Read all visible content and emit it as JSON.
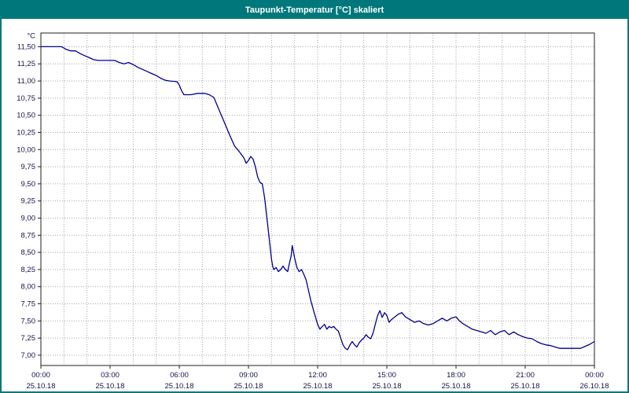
{
  "header": {
    "title": "Taupunkt-Temperatur [°C] skaliert"
  },
  "colors": {
    "title_bar_bg": "#00787b",
    "title_text": "#ffffff",
    "page_border": "#00787b",
    "line_color": "#000090",
    "grid_color": "#a6a6a6",
    "frame_color": "#222222",
    "tick_text_color": "#14144b",
    "plot_bg": "#ffffff"
  },
  "chart_data": {
    "type": "line",
    "title": "Taupunkt-Temperatur [°C] skaliert",
    "ylabel": "°C",
    "xlabel": "",
    "grid": true,
    "legend": "none",
    "xlim": [
      0,
      24
    ],
    "ylim": [
      6.85,
      11.7
    ],
    "x_minor_grid_step_hours": 1,
    "y_ticks": [
      {
        "value": 11.5,
        "label": "11,50"
      },
      {
        "value": 11.25,
        "label": "11,25"
      },
      {
        "value": 11.0,
        "label": "11,00"
      },
      {
        "value": 10.75,
        "label": "10,75"
      },
      {
        "value": 10.5,
        "label": "10,50"
      },
      {
        "value": 10.25,
        "label": "10,25"
      },
      {
        "value": 10.0,
        "label": "10,00"
      },
      {
        "value": 9.75,
        "label": "9,75"
      },
      {
        "value": 9.5,
        "label": "9,50"
      },
      {
        "value": 9.25,
        "label": "9,25"
      },
      {
        "value": 9.0,
        "label": "9,00"
      },
      {
        "value": 8.75,
        "label": "8,75"
      },
      {
        "value": 8.5,
        "label": "8,50"
      },
      {
        "value": 8.25,
        "label": "8,25"
      },
      {
        "value": 8.0,
        "label": "8,00"
      },
      {
        "value": 7.75,
        "label": "7,75"
      },
      {
        "value": 7.5,
        "label": "7,50"
      },
      {
        "value": 7.25,
        "label": "7,25"
      },
      {
        "value": 7.0,
        "label": "7,00"
      }
    ],
    "x_ticks": [
      {
        "hour": 0,
        "time": "00:00",
        "date": "25.10.18"
      },
      {
        "hour": 3,
        "time": "03:00",
        "date": "25.10.18"
      },
      {
        "hour": 6,
        "time": "06:00",
        "date": "25.10.18"
      },
      {
        "hour": 9,
        "time": "09:00",
        "date": "25.10.18"
      },
      {
        "hour": 12,
        "time": "12:00",
        "date": "25.10.18"
      },
      {
        "hour": 15,
        "time": "15:00",
        "date": "25.10.18"
      },
      {
        "hour": 18,
        "time": "18:00",
        "date": "25.10.18"
      },
      {
        "hour": 21,
        "time": "21:00",
        "date": "25.10.18"
      },
      {
        "hour": 24,
        "time": "00:00",
        "date": "26.10.18"
      }
    ],
    "series": [
      {
        "name": "Taupunkt-Temperatur",
        "unit": "°C",
        "points": [
          [
            0.0,
            11.5
          ],
          [
            0.5,
            11.5
          ],
          [
            0.9,
            11.5
          ],
          [
            1.1,
            11.46
          ],
          [
            1.3,
            11.44
          ],
          [
            1.5,
            11.44
          ],
          [
            1.7,
            11.4
          ],
          [
            1.9,
            11.37
          ],
          [
            2.1,
            11.34
          ],
          [
            2.3,
            11.31
          ],
          [
            2.5,
            11.3
          ],
          [
            2.9,
            11.3
          ],
          [
            3.2,
            11.3
          ],
          [
            3.4,
            11.27
          ],
          [
            3.6,
            11.25
          ],
          [
            3.8,
            11.27
          ],
          [
            4.0,
            11.24
          ],
          [
            4.2,
            11.2
          ],
          [
            4.4,
            11.17
          ],
          [
            4.6,
            11.14
          ],
          [
            4.8,
            11.11
          ],
          [
            5.0,
            11.08
          ],
          [
            5.2,
            11.04
          ],
          [
            5.4,
            11.01
          ],
          [
            5.6,
            11.0
          ],
          [
            5.9,
            10.99
          ],
          [
            6.0,
            10.94
          ],
          [
            6.1,
            10.86
          ],
          [
            6.2,
            10.8
          ],
          [
            6.5,
            10.8
          ],
          [
            6.8,
            10.82
          ],
          [
            7.1,
            10.82
          ],
          [
            7.3,
            10.8
          ],
          [
            7.5,
            10.76
          ],
          [
            7.6,
            10.68
          ],
          [
            7.8,
            10.52
          ],
          [
            8.0,
            10.36
          ],
          [
            8.2,
            10.2
          ],
          [
            8.4,
            10.05
          ],
          [
            8.6,
            9.97
          ],
          [
            8.8,
            9.88
          ],
          [
            8.9,
            9.8
          ],
          [
            9.0,
            9.84
          ],
          [
            9.1,
            9.9
          ],
          [
            9.2,
            9.86
          ],
          [
            9.3,
            9.75
          ],
          [
            9.4,
            9.6
          ],
          [
            9.5,
            9.52
          ],
          [
            9.6,
            9.5
          ],
          [
            9.7,
            9.3
          ],
          [
            9.8,
            9.0
          ],
          [
            9.9,
            8.7
          ],
          [
            10.0,
            8.4
          ],
          [
            10.05,
            8.3
          ],
          [
            10.1,
            8.25
          ],
          [
            10.2,
            8.28
          ],
          [
            10.3,
            8.22
          ],
          [
            10.4,
            8.25
          ],
          [
            10.5,
            8.3
          ],
          [
            10.6,
            8.25
          ],
          [
            10.7,
            8.22
          ],
          [
            10.75,
            8.3
          ],
          [
            10.85,
            8.45
          ],
          [
            10.9,
            8.6
          ],
          [
            11.0,
            8.42
          ],
          [
            11.1,
            8.28
          ],
          [
            11.2,
            8.22
          ],
          [
            11.3,
            8.25
          ],
          [
            11.4,
            8.18
          ],
          [
            11.5,
            8.1
          ],
          [
            11.6,
            7.95
          ],
          [
            11.7,
            7.8
          ],
          [
            11.85,
            7.62
          ],
          [
            12.0,
            7.45
          ],
          [
            12.1,
            7.38
          ],
          [
            12.2,
            7.42
          ],
          [
            12.3,
            7.45
          ],
          [
            12.4,
            7.38
          ],
          [
            12.5,
            7.42
          ],
          [
            12.6,
            7.4
          ],
          [
            12.7,
            7.42
          ],
          [
            12.8,
            7.38
          ],
          [
            12.9,
            7.35
          ],
          [
            13.0,
            7.25
          ],
          [
            13.1,
            7.15
          ],
          [
            13.2,
            7.1
          ],
          [
            13.3,
            7.08
          ],
          [
            13.4,
            7.15
          ],
          [
            13.5,
            7.2
          ],
          [
            13.6,
            7.15
          ],
          [
            13.7,
            7.12
          ],
          [
            13.8,
            7.18
          ],
          [
            13.9,
            7.22
          ],
          [
            14.0,
            7.25
          ],
          [
            14.1,
            7.3
          ],
          [
            14.2,
            7.26
          ],
          [
            14.3,
            7.24
          ],
          [
            14.4,
            7.32
          ],
          [
            14.5,
            7.45
          ],
          [
            14.6,
            7.58
          ],
          [
            14.7,
            7.65
          ],
          [
            14.8,
            7.55
          ],
          [
            14.9,
            7.62
          ],
          [
            15.0,
            7.58
          ],
          [
            15.1,
            7.48
          ],
          [
            15.2,
            7.52
          ],
          [
            15.35,
            7.56
          ],
          [
            15.5,
            7.6
          ],
          [
            15.65,
            7.62
          ],
          [
            15.8,
            7.56
          ],
          [
            16.0,
            7.52
          ],
          [
            16.2,
            7.48
          ],
          [
            16.4,
            7.5
          ],
          [
            16.6,
            7.46
          ],
          [
            16.8,
            7.44
          ],
          [
            17.0,
            7.46
          ],
          [
            17.2,
            7.5
          ],
          [
            17.4,
            7.54
          ],
          [
            17.6,
            7.5
          ],
          [
            17.8,
            7.54
          ],
          [
            18.0,
            7.56
          ],
          [
            18.15,
            7.5
          ],
          [
            18.3,
            7.46
          ],
          [
            18.5,
            7.42
          ],
          [
            18.7,
            7.38
          ],
          [
            18.9,
            7.36
          ],
          [
            19.1,
            7.34
          ],
          [
            19.3,
            7.32
          ],
          [
            19.5,
            7.36
          ],
          [
            19.7,
            7.3
          ],
          [
            19.9,
            7.34
          ],
          [
            20.1,
            7.36
          ],
          [
            20.3,
            7.3
          ],
          [
            20.5,
            7.34
          ],
          [
            20.7,
            7.3
          ],
          [
            20.9,
            7.27
          ],
          [
            21.1,
            7.25
          ],
          [
            21.3,
            7.24
          ],
          [
            21.5,
            7.2
          ],
          [
            21.7,
            7.17
          ],
          [
            21.9,
            7.15
          ],
          [
            22.1,
            7.14
          ],
          [
            22.3,
            7.12
          ],
          [
            22.5,
            7.1
          ],
          [
            22.8,
            7.1
          ],
          [
            23.1,
            7.1
          ],
          [
            23.4,
            7.1
          ],
          [
            23.6,
            7.13
          ],
          [
            23.8,
            7.16
          ],
          [
            24.0,
            7.2
          ]
        ]
      }
    ]
  }
}
